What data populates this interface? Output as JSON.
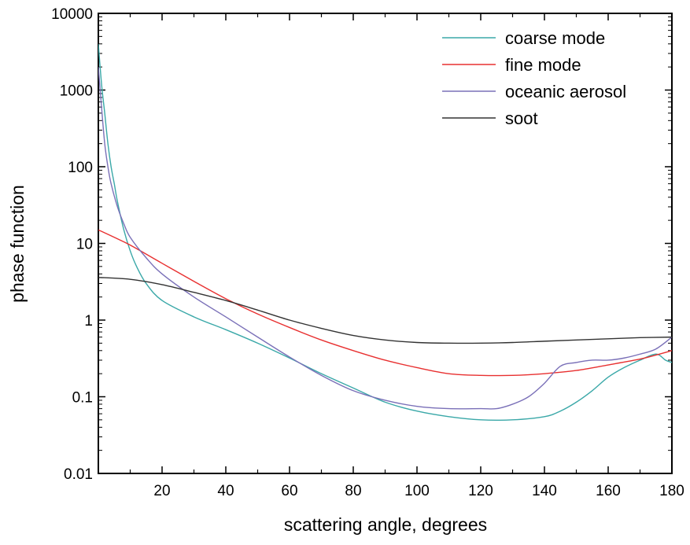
{
  "chart_data": {
    "type": "line",
    "title": "",
    "xlabel": "scattering angle, degrees",
    "ylabel": "phase function",
    "xlim": [
      0,
      180
    ],
    "ylim": [
      0.01,
      10000
    ],
    "yscale": "log",
    "grid": false,
    "legend_position": "top-right",
    "x_ticks": [
      20,
      40,
      60,
      80,
      100,
      120,
      140,
      160,
      180
    ],
    "x_tick_labels": [
      "20",
      "40",
      "60",
      "80",
      "100",
      "120",
      "140",
      "160",
      "180"
    ],
    "y_ticks": [
      0.01,
      0.1,
      1,
      10,
      100,
      1000,
      10000
    ],
    "y_tick_labels": [
      "0.01",
      "0.1",
      "1",
      "10",
      "100",
      "1000",
      "10000"
    ],
    "series": [
      {
        "name": "coarse mode",
        "color": "#3aa8a8",
        "x": [
          0,
          1,
          2,
          3,
          4,
          5,
          6,
          8,
          10,
          12,
          15,
          20,
          30,
          40,
          50,
          60,
          70,
          80,
          90,
          100,
          110,
          120,
          130,
          140,
          145,
          150,
          155,
          160,
          165,
          170,
          175,
          178,
          180
        ],
        "y": [
          4000,
          1200,
          500,
          200,
          100,
          60,
          35,
          15,
          8,
          5,
          3,
          1.8,
          1.1,
          0.75,
          0.5,
          0.32,
          0.2,
          0.13,
          0.085,
          0.065,
          0.055,
          0.05,
          0.05,
          0.055,
          0.065,
          0.085,
          0.12,
          0.18,
          0.24,
          0.3,
          0.36,
          0.3,
          0.28
        ]
      },
      {
        "name": "fine mode",
        "color": "#e83030",
        "x": [
          0,
          5,
          10,
          20,
          30,
          40,
          50,
          60,
          70,
          80,
          90,
          100,
          110,
          120,
          130,
          140,
          150,
          160,
          170,
          175,
          180
        ],
        "y": [
          15,
          12,
          9.5,
          5.5,
          3.2,
          1.9,
          1.2,
          0.8,
          0.55,
          0.4,
          0.3,
          0.24,
          0.2,
          0.19,
          0.19,
          0.2,
          0.22,
          0.26,
          0.31,
          0.35,
          0.4
        ]
      },
      {
        "name": "oceanic aerosol",
        "color": "#7a70b8",
        "x": [
          0,
          1,
          2,
          3,
          4,
          6,
          8,
          10,
          15,
          20,
          30,
          40,
          50,
          60,
          70,
          80,
          90,
          100,
          110,
          120,
          125,
          130,
          135,
          140,
          145,
          150,
          155,
          160,
          165,
          170,
          175,
          180
        ],
        "y": [
          2000,
          600,
          200,
          100,
          60,
          30,
          18,
          12,
          6.5,
          4,
          2,
          1.1,
          0.6,
          0.33,
          0.19,
          0.12,
          0.09,
          0.075,
          0.07,
          0.07,
          0.07,
          0.08,
          0.1,
          0.15,
          0.25,
          0.28,
          0.3,
          0.3,
          0.32,
          0.36,
          0.42,
          0.6
        ]
      },
      {
        "name": "soot",
        "color": "#333333",
        "x": [
          0,
          10,
          20,
          30,
          40,
          50,
          60,
          70,
          80,
          90,
          100,
          110,
          120,
          130,
          140,
          150,
          160,
          170,
          180
        ],
        "y": [
          3.6,
          3.4,
          2.9,
          2.3,
          1.8,
          1.35,
          1.0,
          0.78,
          0.63,
          0.55,
          0.51,
          0.5,
          0.5,
          0.51,
          0.53,
          0.55,
          0.57,
          0.59,
          0.6
        ]
      }
    ]
  }
}
